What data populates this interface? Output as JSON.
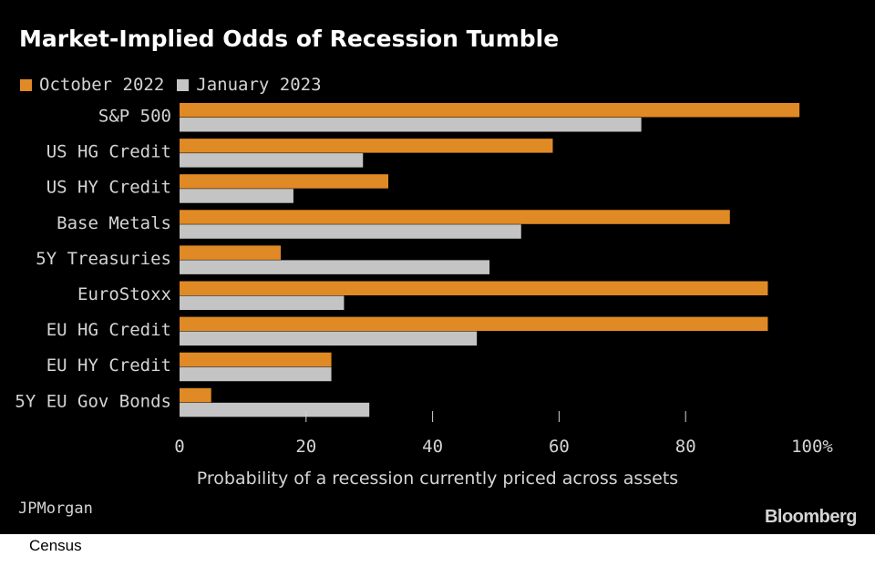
{
  "chart_data": {
    "type": "bar",
    "orientation": "horizontal",
    "title": "Market-Implied Odds of Recession Tumble",
    "categories": [
      "S&P 500",
      "US HG Credit",
      "US HY Credit",
      "Base Metals",
      "5Y Treasuries",
      "EuroStoxx",
      "EU HG Credit",
      "EU HY Credit",
      "5Y EU Gov Bonds"
    ],
    "series": [
      {
        "name": "October 2022",
        "color": "#e08a26",
        "values": [
          98,
          59,
          33,
          87,
          16,
          93,
          93,
          24,
          5
        ]
      },
      {
        "name": "January 2023",
        "color": "#c4c4c4",
        "values": [
          73,
          29,
          18,
          54,
          49,
          26,
          47,
          24,
          30
        ]
      }
    ],
    "xlim": [
      0,
      100
    ],
    "xticks": [
      0,
      20,
      40,
      60,
      80,
      100
    ],
    "xtick_labels": [
      "0",
      "20",
      "40",
      "60",
      "80",
      "100%"
    ],
    "xlabel": "Probability of a recession currently priced across assets",
    "legend": "top-left",
    "grid": false
  },
  "footer": {
    "source": "JPMorgan",
    "brand": "Bloomberg",
    "credit": "Census"
  }
}
